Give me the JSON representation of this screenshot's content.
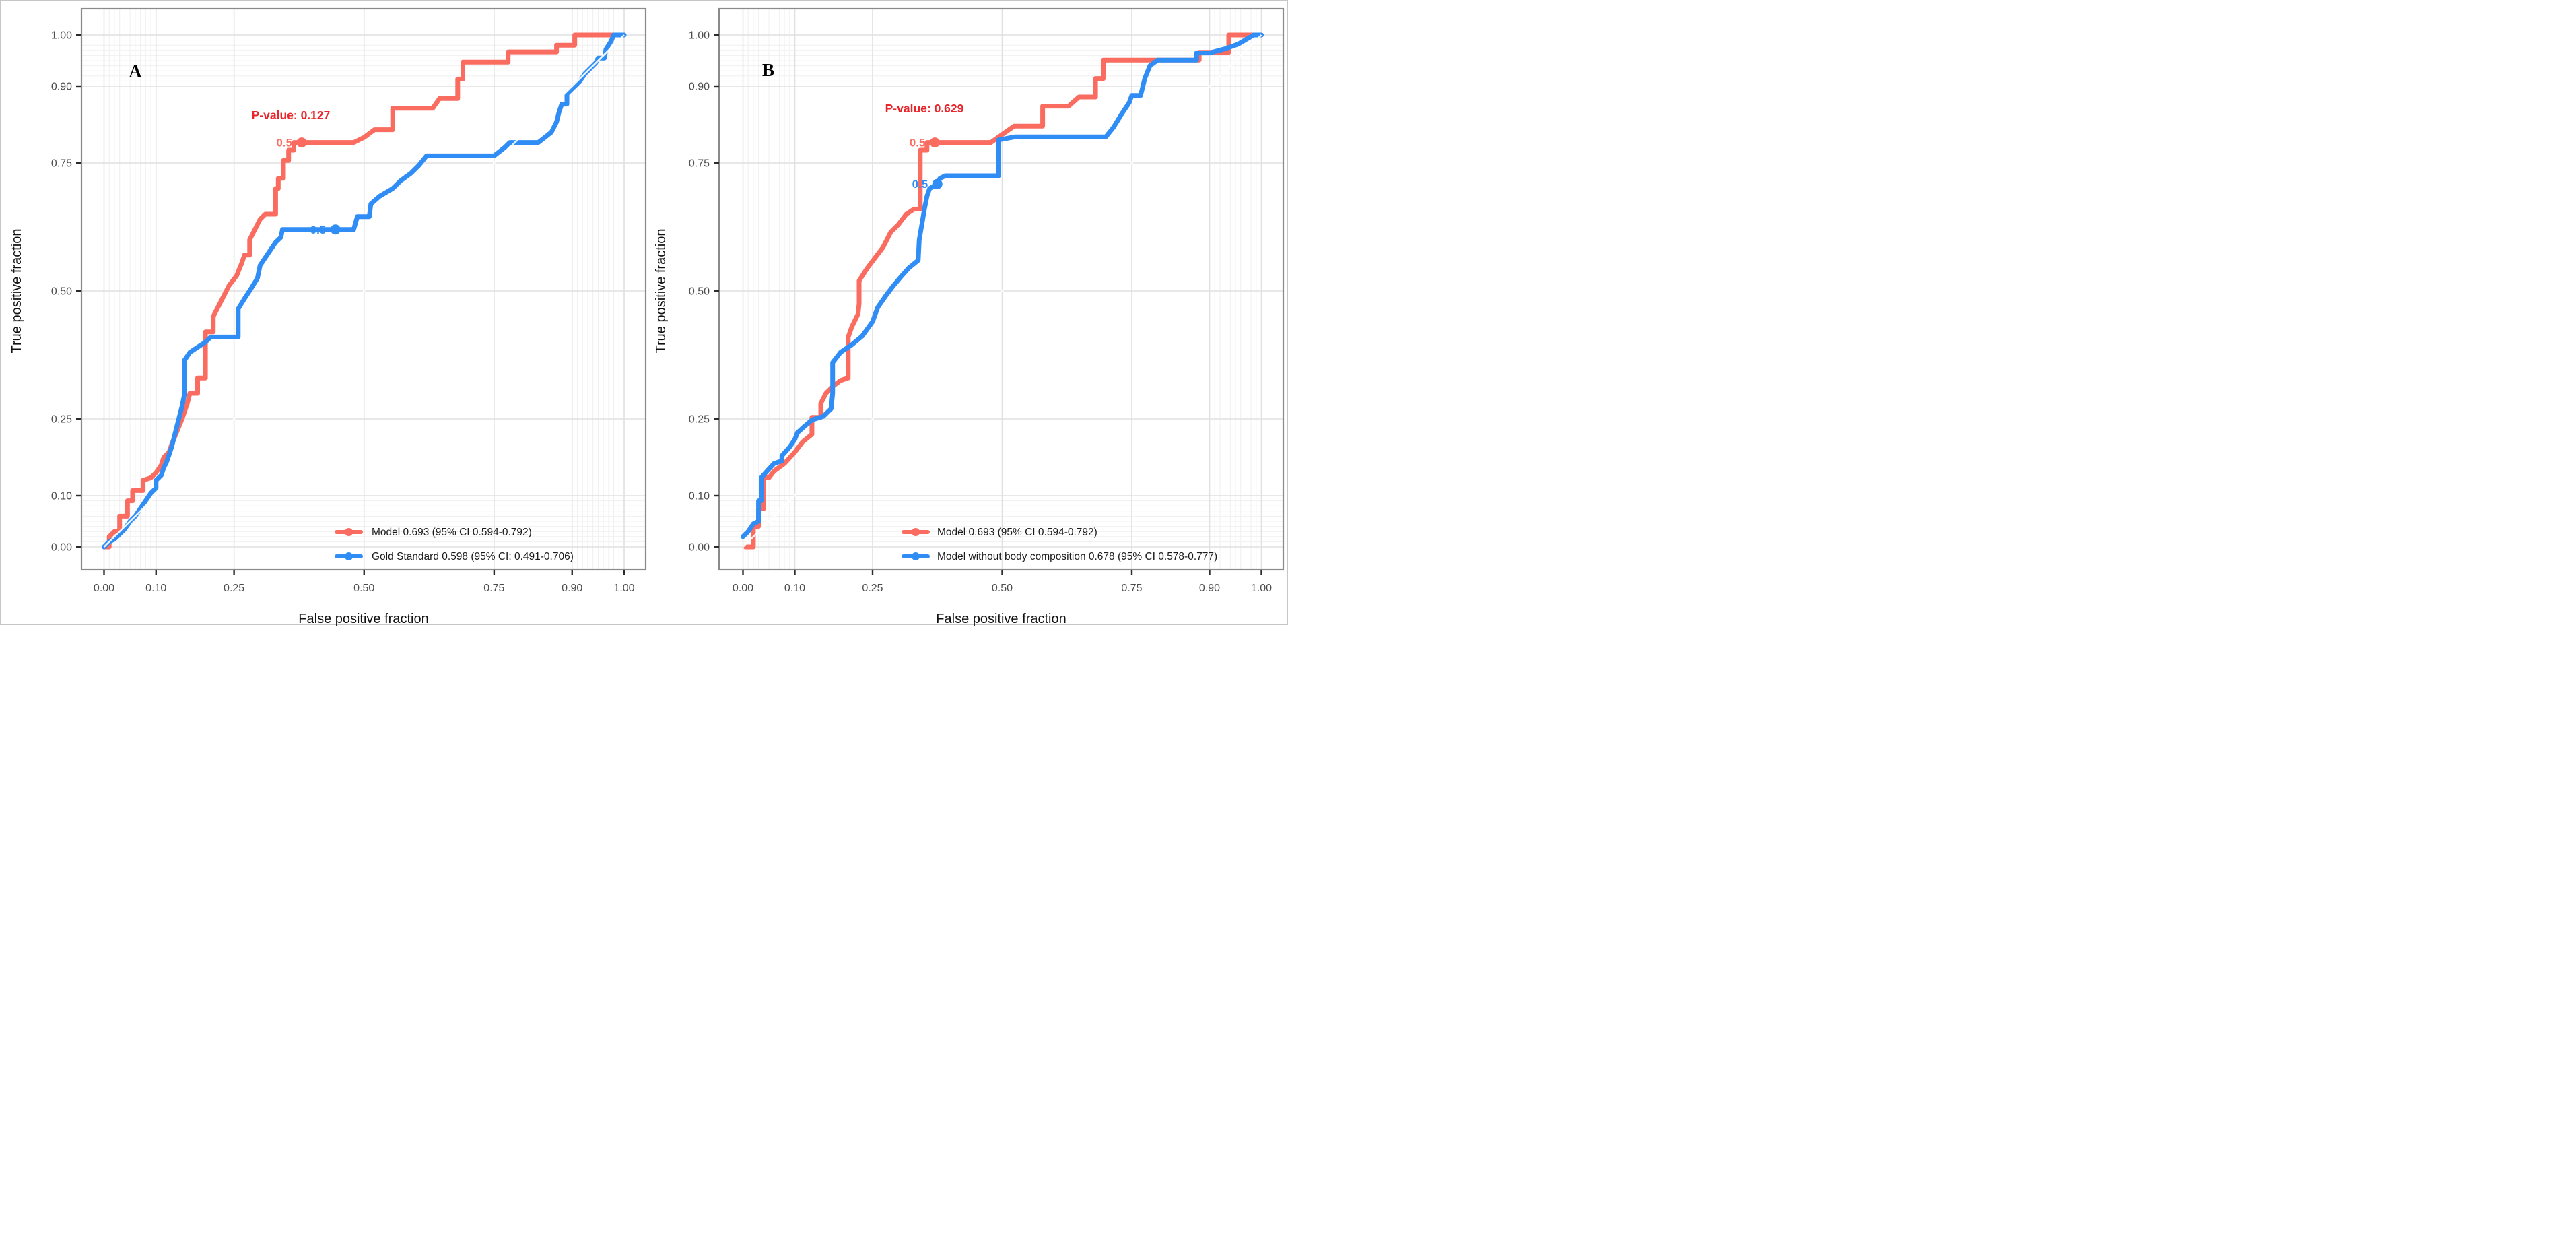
{
  "figure": {
    "background": "#ffffff",
    "frame_color": "#c6c6c6"
  },
  "colors": {
    "red": "#fa6b60",
    "blue": "#2f8df5",
    "pvalue_red": "#e8252b",
    "grid_major": "#e0e0e0",
    "grid_minor": "#f0f0f0",
    "panel_border": "#8a8a8a",
    "tick_mark": "#2b2b2b",
    "diagonal": "#ffffff"
  },
  "axes": {
    "x_label": "False positive fraction",
    "y_label": "True positive fraction",
    "tick_values": [
      0.0,
      0.1,
      0.25,
      0.5,
      0.75,
      0.9,
      1.0
    ],
    "tick_labels": [
      "0.00",
      "0.10",
      "0.25",
      "0.50",
      "0.75",
      "0.90",
      "1.00"
    ],
    "minor_tick_values": [
      0.01,
      0.02,
      0.03,
      0.04,
      0.05,
      0.06,
      0.07,
      0.08,
      0.09,
      0.91,
      0.92,
      0.93,
      0.94,
      0.95,
      0.96,
      0.97,
      0.98,
      0.99
    ],
    "range": [
      0,
      1
    ],
    "grid": "on",
    "diagonal_reference_line": true
  },
  "chart_data": [
    {
      "type": "line",
      "label": "A",
      "p_value": "P-value: 0.127",
      "xlabel": "False positive fraction",
      "ylabel": "True positive fraction",
      "xlim": [
        0,
        1
      ],
      "ylim": [
        0,
        1
      ],
      "legend_position": "bottom-right-inside",
      "series": [
        {
          "name": "Model 0.693 (95% CI 0.594-0.792)",
          "auc": 0.693,
          "ci_low": 0.594,
          "ci_high": 0.792,
          "color_key": "red",
          "marker_label": "0.5",
          "marker": {
            "x": 0.38,
            "y": 0.79
          },
          "points": [
            [
              0,
              0
            ],
            [
              0.01,
              0
            ],
            [
              0.01,
              0.02
            ],
            [
              0.02,
              0.03
            ],
            [
              0.03,
              0.03
            ],
            [
              0.03,
              0.06
            ],
            [
              0.045,
              0.06
            ],
            [
              0.045,
              0.09
            ],
            [
              0.055,
              0.09
            ],
            [
              0.055,
              0.11
            ],
            [
              0.075,
              0.11
            ],
            [
              0.075,
              0.13
            ],
            [
              0.09,
              0.135
            ],
            [
              0.1,
              0.145
            ],
            [
              0.11,
              0.16
            ],
            [
              0.115,
              0.175
            ],
            [
              0.125,
              0.185
            ],
            [
              0.13,
              0.2
            ],
            [
              0.14,
              0.225
            ],
            [
              0.15,
              0.25
            ],
            [
              0.16,
              0.28
            ],
            [
              0.165,
              0.3
            ],
            [
              0.18,
              0.3
            ],
            [
              0.18,
              0.33
            ],
            [
              0.195,
              0.33
            ],
            [
              0.195,
              0.42
            ],
            [
              0.21,
              0.42
            ],
            [
              0.21,
              0.45
            ],
            [
              0.22,
              0.47
            ],
            [
              0.23,
              0.49
            ],
            [
              0.24,
              0.51
            ],
            [
              0.255,
              0.53
            ],
            [
              0.265,
              0.555
            ],
            [
              0.27,
              0.57
            ],
            [
              0.28,
              0.57
            ],
            [
              0.28,
              0.6
            ],
            [
              0.29,
              0.62
            ],
            [
              0.3,
              0.64
            ],
            [
              0.31,
              0.65
            ],
            [
              0.33,
              0.65
            ],
            [
              0.33,
              0.7
            ],
            [
              0.335,
              0.7
            ],
            [
              0.335,
              0.72
            ],
            [
              0.345,
              0.72
            ],
            [
              0.345,
              0.755
            ],
            [
              0.355,
              0.755
            ],
            [
              0.355,
              0.775
            ],
            [
              0.365,
              0.775
            ],
            [
              0.365,
              0.79
            ],
            [
              0.38,
              0.79
            ],
            [
              0.48,
              0.79
            ],
            [
              0.5,
              0.8
            ],
            [
              0.52,
              0.815
            ],
            [
              0.555,
              0.815
            ],
            [
              0.555,
              0.857
            ],
            [
              0.632,
              0.857
            ],
            [
              0.645,
              0.876
            ],
            [
              0.68,
              0.876
            ],
            [
              0.68,
              0.914
            ],
            [
              0.69,
              0.914
            ],
            [
              0.69,
              0.947
            ],
            [
              0.777,
              0.947
            ],
            [
              0.777,
              0.967
            ],
            [
              0.87,
              0.967
            ],
            [
              0.87,
              0.98
            ],
            [
              0.905,
              0.98
            ],
            [
              0.905,
              1
            ],
            [
              1,
              1
            ]
          ]
        },
        {
          "name": "Gold Standard 0.598 (95% CI: 0.491-0.706)",
          "auc": 0.598,
          "ci_low": 0.491,
          "ci_high": 0.706,
          "color_key": "blue",
          "marker_label": "0.5",
          "marker": {
            "x": 0.445,
            "y": 0.62
          },
          "points": [
            [
              0,
              0
            ],
            [
              0.01,
              0.01
            ],
            [
              0.02,
              0.015
            ],
            [
              0.03,
              0.025
            ],
            [
              0.04,
              0.035
            ],
            [
              0.05,
              0.05
            ],
            [
              0.06,
              0.06
            ],
            [
              0.07,
              0.075
            ],
            [
              0.08,
              0.09
            ],
            [
              0.09,
              0.105
            ],
            [
              0.1,
              0.115
            ],
            [
              0.1,
              0.13
            ],
            [
              0.11,
              0.14
            ],
            [
              0.115,
              0.155
            ],
            [
              0.12,
              0.165
            ],
            [
              0.125,
              0.18
            ],
            [
              0.13,
              0.195
            ],
            [
              0.135,
              0.215
            ],
            [
              0.14,
              0.235
            ],
            [
              0.145,
              0.255
            ],
            [
              0.15,
              0.275
            ],
            [
              0.155,
              0.3
            ],
            [
              0.155,
              0.365
            ],
            [
              0.165,
              0.38
            ],
            [
              0.18,
              0.39
            ],
            [
              0.195,
              0.4
            ],
            [
              0.205,
              0.41
            ],
            [
              0.258,
              0.41
            ],
            [
              0.258,
              0.465
            ],
            [
              0.27,
              0.485
            ],
            [
              0.283,
              0.505
            ],
            [
              0.295,
              0.525
            ],
            [
              0.3,
              0.55
            ],
            [
              0.31,
              0.565
            ],
            [
              0.32,
              0.58
            ],
            [
              0.33,
              0.595
            ],
            [
              0.34,
              0.605
            ],
            [
              0.343,
              0.62
            ],
            [
              0.445,
              0.62
            ],
            [
              0.48,
              0.62
            ],
            [
              0.487,
              0.645
            ],
            [
              0.51,
              0.645
            ],
            [
              0.513,
              0.67
            ],
            [
              0.53,
              0.685
            ],
            [
              0.555,
              0.7
            ],
            [
              0.57,
              0.715
            ],
            [
              0.59,
              0.73
            ],
            [
              0.605,
              0.745
            ],
            [
              0.62,
              0.764
            ],
            [
              0.75,
              0.764
            ],
            [
              0.77,
              0.78
            ],
            [
              0.78,
              0.79
            ],
            [
              0.835,
              0.79
            ],
            [
              0.86,
              0.81
            ],
            [
              0.87,
              0.83
            ],
            [
              0.875,
              0.85
            ],
            [
              0.88,
              0.865
            ],
            [
              0.89,
              0.865
            ],
            [
              0.89,
              0.885
            ],
            [
              0.9,
              0.895
            ],
            [
              0.915,
              0.91
            ],
            [
              0.925,
              0.925
            ],
            [
              0.935,
              0.935
            ],
            [
              0.945,
              0.945
            ],
            [
              0.95,
              0.955
            ],
            [
              0.962,
              0.955
            ],
            [
              0.965,
              0.972
            ],
            [
              0.975,
              0.988
            ],
            [
              0.98,
              1
            ],
            [
              1,
              1
            ]
          ]
        }
      ]
    },
    {
      "type": "line",
      "label": "B",
      "p_value": "P-value: 0.629",
      "xlabel": "False positive fraction",
      "ylabel": "True positive fraction",
      "xlim": [
        0,
        1
      ],
      "ylim": [
        0,
        1
      ],
      "legend_position": "bottom-right-inside",
      "series": [
        {
          "name": "Model 0.693 (95% CI 0.594-0.792)",
          "auc": 0.693,
          "ci_low": 0.594,
          "ci_high": 0.792,
          "color_key": "red",
          "marker_label": "0.5",
          "marker": {
            "x": 0.37,
            "y": 0.79
          },
          "points": [
            [
              0.005,
              0
            ],
            [
              0.02,
              0
            ],
            [
              0.02,
              0.04
            ],
            [
              0.03,
              0.04
            ],
            [
              0.03,
              0.075
            ],
            [
              0.04,
              0.075
            ],
            [
              0.04,
              0.135
            ],
            [
              0.05,
              0.135
            ],
            [
              0.06,
              0.148
            ],
            [
              0.08,
              0.163
            ],
            [
              0.1,
              0.185
            ],
            [
              0.115,
              0.205
            ],
            [
              0.133,
              0.22
            ],
            [
              0.133,
              0.253
            ],
            [
              0.15,
              0.253
            ],
            [
              0.15,
              0.28
            ],
            [
              0.16,
              0.3
            ],
            [
              0.175,
              0.315
            ],
            [
              0.188,
              0.325
            ],
            [
              0.203,
              0.33
            ],
            [
              0.203,
              0.41
            ],
            [
              0.21,
              0.43
            ],
            [
              0.222,
              0.455
            ],
            [
              0.224,
              0.475
            ],
            [
              0.224,
              0.52
            ],
            [
              0.24,
              0.545
            ],
            [
              0.255,
              0.565
            ],
            [
              0.27,
              0.585
            ],
            [
              0.285,
              0.615
            ],
            [
              0.3,
              0.63
            ],
            [
              0.315,
              0.65
            ],
            [
              0.33,
              0.66
            ],
            [
              0.342,
              0.66
            ],
            [
              0.342,
              0.775
            ],
            [
              0.355,
              0.775
            ],
            [
              0.355,
              0.79
            ],
            [
              0.37,
              0.79
            ],
            [
              0.478,
              0.79
            ],
            [
              0.523,
              0.822
            ],
            [
              0.578,
              0.822
            ],
            [
              0.578,
              0.861
            ],
            [
              0.628,
              0.861
            ],
            [
              0.648,
              0.879
            ],
            [
              0.68,
              0.879
            ],
            [
              0.68,
              0.915
            ],
            [
              0.695,
              0.915
            ],
            [
              0.695,
              0.951
            ],
            [
              0.88,
              0.951
            ],
            [
              0.88,
              0.966
            ],
            [
              0.937,
              0.966
            ],
            [
              0.937,
              1
            ],
            [
              1,
              1
            ]
          ]
        },
        {
          "name": "Model without body composition 0.678 (95% CI 0.578-0.777)",
          "auc": 0.678,
          "ci_low": 0.578,
          "ci_high": 0.777,
          "color_key": "blue",
          "marker_label": "0.5",
          "marker": {
            "x": 0.375,
            "y": 0.709
          },
          "points": [
            [
              0,
              0.02
            ],
            [
              0.01,
              0.03
            ],
            [
              0.02,
              0.045
            ],
            [
              0.03,
              0.05
            ],
            [
              0.03,
              0.09
            ],
            [
              0.035,
              0.09
            ],
            [
              0.035,
              0.135
            ],
            [
              0.048,
              0.15
            ],
            [
              0.06,
              0.163
            ],
            [
              0.075,
              0.168
            ],
            [
              0.075,
              0.178
            ],
            [
              0.09,
              0.195
            ],
            [
              0.1,
              0.21
            ],
            [
              0.105,
              0.223
            ],
            [
              0.118,
              0.235
            ],
            [
              0.133,
              0.248
            ],
            [
              0.155,
              0.255
            ],
            [
              0.17,
              0.27
            ],
            [
              0.173,
              0.3
            ],
            [
              0.173,
              0.36
            ],
            [
              0.188,
              0.38
            ],
            [
              0.21,
              0.395
            ],
            [
              0.23,
              0.412
            ],
            [
              0.25,
              0.44
            ],
            [
              0.26,
              0.468
            ],
            [
              0.275,
              0.49
            ],
            [
              0.29,
              0.51
            ],
            [
              0.305,
              0.528
            ],
            [
              0.32,
              0.545
            ],
            [
              0.338,
              0.56
            ],
            [
              0.34,
              0.6
            ],
            [
              0.345,
              0.63
            ],
            [
              0.35,
              0.66
            ],
            [
              0.355,
              0.685
            ],
            [
              0.36,
              0.7
            ],
            [
              0.375,
              0.709
            ],
            [
              0.38,
              0.72
            ],
            [
              0.39,
              0.725
            ],
            [
              0.493,
              0.725
            ],
            [
              0.493,
              0.795
            ],
            [
              0.525,
              0.801
            ],
            [
              0.7,
              0.801
            ],
            [
              0.715,
              0.82
            ],
            [
              0.73,
              0.845
            ],
            [
              0.745,
              0.868
            ],
            [
              0.75,
              0.882
            ],
            [
              0.767,
              0.882
            ],
            [
              0.775,
              0.915
            ],
            [
              0.785,
              0.94
            ],
            [
              0.8,
              0.951
            ],
            [
              0.875,
              0.951
            ],
            [
              0.875,
              0.965
            ],
            [
              0.9,
              0.965
            ],
            [
              0.93,
              0.973
            ],
            [
              0.955,
              0.982
            ],
            [
              0.985,
              1
            ],
            [
              1,
              1
            ]
          ]
        }
      ]
    }
  ]
}
